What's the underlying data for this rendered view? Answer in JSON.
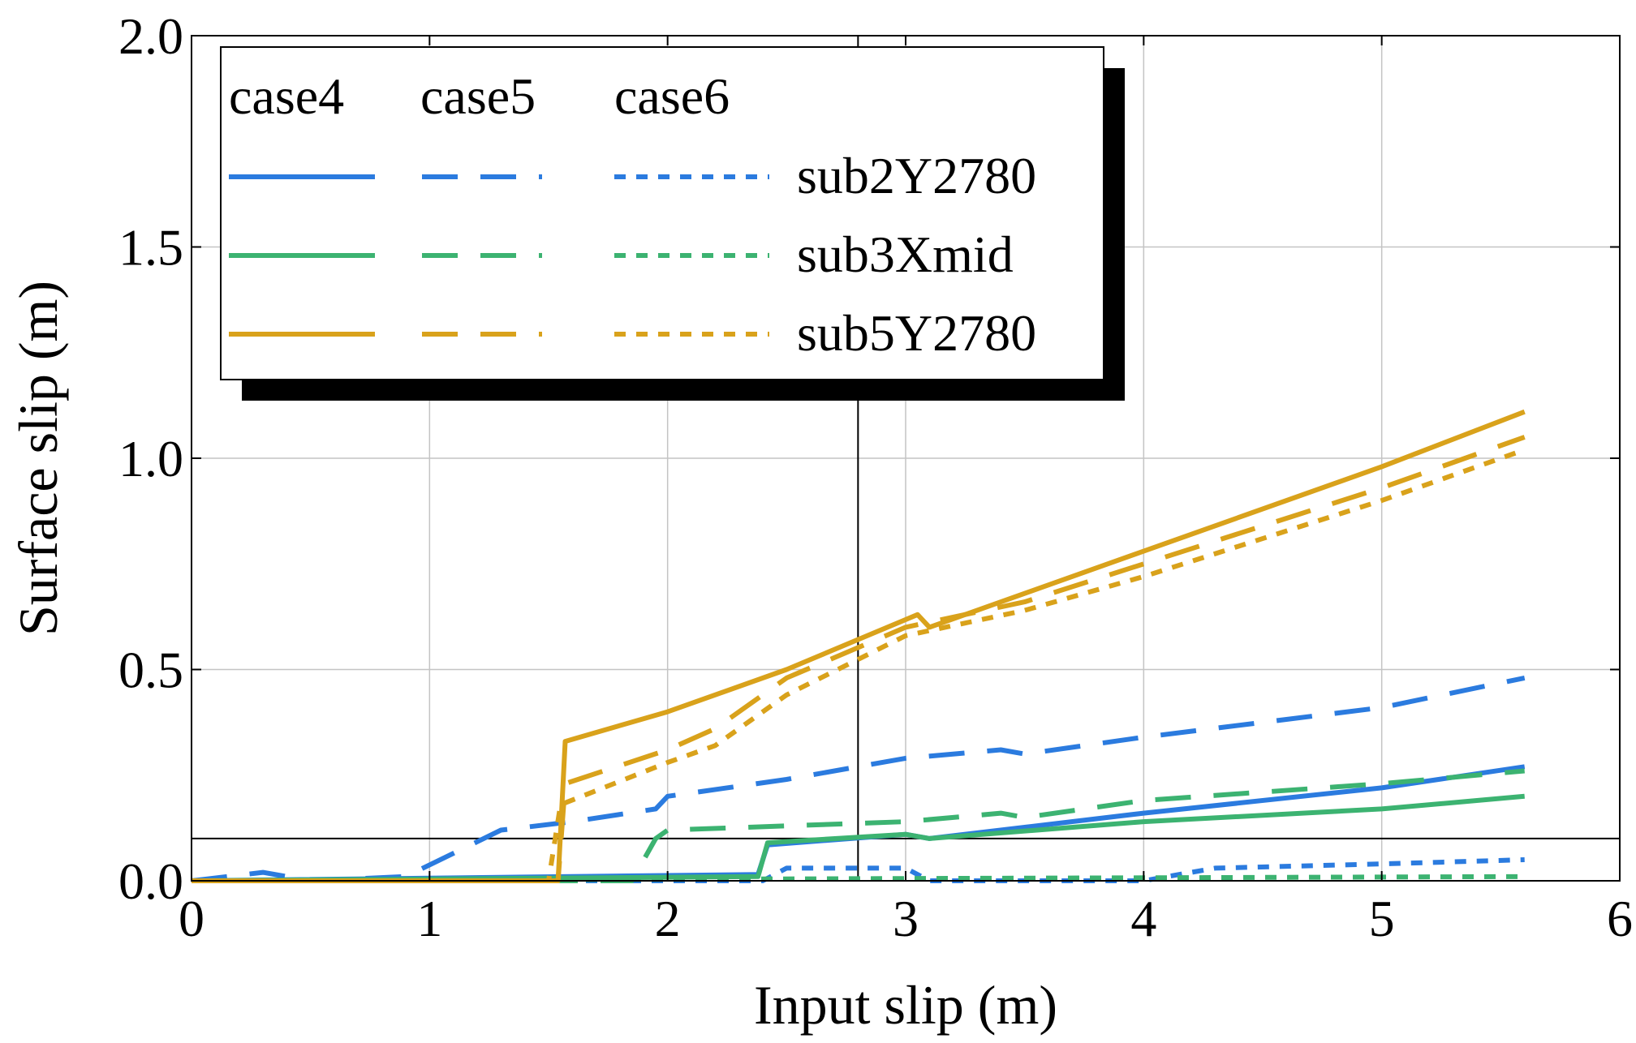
{
  "chart_data": {
    "type": "line",
    "title": "",
    "xlabel": "Input slip (m)",
    "ylabel": "Surface slip (m)",
    "xlim": [
      0,
      6
    ],
    "ylim": [
      0,
      2
    ],
    "x_ticks": [
      0,
      1,
      2,
      3,
      4,
      5,
      6
    ],
    "x_tick_labels": [
      "0",
      "1",
      "2",
      "3",
      "4",
      "5",
      "6"
    ],
    "y_ticks": [
      0,
      0.5,
      1.0,
      1.5,
      2.0
    ],
    "y_tick_labels": [
      "0.0",
      "0.5",
      "1.0",
      "1.5",
      "2.0"
    ],
    "grid": true,
    "reference_lines": {
      "vertical_x": 2.8,
      "horizontal_y": 0.1
    },
    "legend": {
      "position": "top-left",
      "case_headers": [
        "case4",
        "case5",
        "case6"
      ],
      "rows": [
        {
          "label": "sub2Y2780",
          "color": "#2b7bdf"
        },
        {
          "label": "sub3Xmid",
          "color": "#3cb371"
        },
        {
          "label": "sub5Y2780",
          "color": "#d9a21b"
        }
      ]
    },
    "series": [
      {
        "name": "sub2Y2780 case4",
        "color": "#2b7bdf",
        "dash": "solid",
        "x": [
          0,
          2.38,
          2.42,
          3.0,
          3.1,
          4.0,
          5.0,
          5.6
        ],
        "y": [
          0,
          0.015,
          0.085,
          0.11,
          0.1,
          0.16,
          0.22,
          0.27
        ]
      },
      {
        "name": "sub2Y2780 case5",
        "color": "#2b7bdf",
        "dash": "dashed",
        "x": [
          0,
          0.3,
          0.5,
          0.9,
          1.3,
          1.6,
          1.95,
          2.0,
          2.5,
          3.0,
          3.4,
          3.5,
          4.0,
          5.0,
          5.6
        ],
        "y": [
          0,
          0.02,
          0.0,
          0.01,
          0.12,
          0.14,
          0.17,
          0.2,
          0.24,
          0.29,
          0.31,
          0.3,
          0.34,
          0.41,
          0.48
        ]
      },
      {
        "name": "sub2Y2780 case6",
        "color": "#2b7bdf",
        "dash": "dotted",
        "x": [
          0,
          2.4,
          2.5,
          3.0,
          3.1,
          4.0,
          4.3,
          5.0,
          5.6
        ],
        "y": [
          0,
          0.0,
          0.03,
          0.03,
          0.0,
          0.0,
          0.03,
          0.04,
          0.05
        ]
      },
      {
        "name": "sub3Xmid case4",
        "color": "#3cb371",
        "dash": "solid",
        "x": [
          0,
          2.38,
          2.42,
          3.0,
          3.1,
          4.0,
          5.0,
          5.6
        ],
        "y": [
          0,
          0.01,
          0.09,
          0.11,
          0.1,
          0.14,
          0.17,
          0.2
        ]
      },
      {
        "name": "sub3Xmid case5",
        "color": "#3cb371",
        "dash": "dashed",
        "x": [
          0,
          1.85,
          1.95,
          2.0,
          2.5,
          3.0,
          3.4,
          3.5,
          4.0,
          5.0,
          5.6
        ],
        "y": [
          0,
          0.0,
          0.1,
          0.12,
          0.13,
          0.14,
          0.16,
          0.15,
          0.19,
          0.23,
          0.26
        ]
      },
      {
        "name": "sub3Xmid case6",
        "color": "#3cb371",
        "dash": "dotted",
        "x": [
          0,
          5.6
        ],
        "y": [
          0,
          0.01
        ]
      },
      {
        "name": "sub5Y2780 case4",
        "color": "#d9a21b",
        "dash": "solid",
        "x": [
          0,
          1.54,
          1.57,
          2.0,
          2.5,
          3.05,
          3.1,
          4.0,
          5.0,
          5.6
        ],
        "y": [
          0,
          0.0,
          0.33,
          0.4,
          0.5,
          0.63,
          0.6,
          0.78,
          0.98,
          1.11
        ]
      },
      {
        "name": "sub5Y2780 case5",
        "color": "#d9a21b",
        "dash": "dashed",
        "x": [
          0,
          1.54,
          1.57,
          2.0,
          2.2,
          2.5,
          3.0,
          3.5,
          4.0,
          5.0,
          5.6
        ],
        "y": [
          0,
          0.0,
          0.23,
          0.31,
          0.36,
          0.48,
          0.6,
          0.66,
          0.75,
          0.93,
          1.05
        ]
      },
      {
        "name": "sub5Y2780 case6",
        "color": "#d9a21b",
        "dash": "dotted",
        "x": [
          0,
          1.5,
          1.55,
          2.0,
          2.2,
          2.5,
          3.0,
          3.5,
          4.0,
          5.0,
          5.6
        ],
        "y": [
          0,
          0.0,
          0.18,
          0.28,
          0.32,
          0.44,
          0.58,
          0.64,
          0.72,
          0.9,
          1.02
        ]
      }
    ]
  }
}
